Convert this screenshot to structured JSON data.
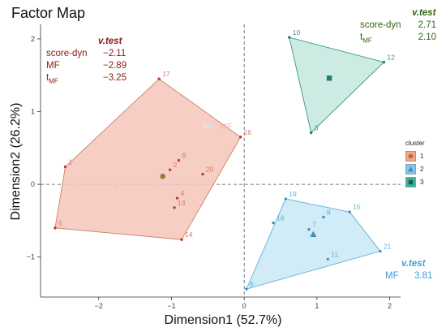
{
  "chart_data": {
    "type": "scatter",
    "title": "Factor Map",
    "xlabel": "Dimension1 (52.7%)",
    "ylabel": "Dimension2 (26.2%)",
    "xlim": [
      -2.8,
      2.15
    ],
    "ylim": [
      -1.55,
      2.2
    ],
    "xticks": [
      -2,
      -1,
      0,
      1,
      2
    ],
    "xtick_labels": [
      "−2",
      "−1",
      "0",
      "1",
      "2"
    ],
    "yticks": [
      -1,
      0,
      1,
      2
    ],
    "yticks_labels_unused": "",
    "ytick_labels": [
      "−1",
      "0",
      "1",
      "2"
    ],
    "reference_lines": {
      "x": 0,
      "y": 0,
      "style": "dashed"
    },
    "legend": {
      "title": "cluster",
      "placement": "right",
      "entries": [
        {
          "label": "1",
          "color": "#f4a582",
          "shape": "circle"
        },
        {
          "label": "2",
          "color": "#7fc8ea",
          "shape": "triangle"
        },
        {
          "label": "3",
          "color": "#35b39a",
          "shape": "square"
        }
      ]
    },
    "clusters": [
      {
        "name": "1",
        "fill": "#f6c6b8",
        "stroke": "#c9826f",
        "point_color": "#c0392b",
        "label_color": "#d9776a",
        "hull": [
          "17",
          "16",
          "14",
          "5",
          "1"
        ],
        "centroid": {
          "x": -1.12,
          "y": 0.11
        },
        "points": [
          {
            "label": "1",
            "x": -2.46,
            "y": 0.24
          },
          {
            "label": "2",
            "x": -1.02,
            "y": 0.2
          },
          {
            "label": "4",
            "x": -0.92,
            "y": -0.19
          },
          {
            "label": "5",
            "x": -2.6,
            "y": -0.6
          },
          {
            "label": "9",
            "x": -0.9,
            "y": 0.33
          },
          {
            "label": "13",
            "x": -0.96,
            "y": -0.32
          },
          {
            "label": "14",
            "x": -0.86,
            "y": -0.76
          },
          {
            "label": "16",
            "x": -0.05,
            "y": 0.65
          },
          {
            "label": "17",
            "x": -1.17,
            "y": 1.45
          },
          {
            "label": "20",
            "x": -0.57,
            "y": 0.14
          }
        ]
      },
      {
        "name": "2",
        "fill": "#c9e7f6",
        "stroke": "#5fb3d9",
        "point_color": "#3d8fc0",
        "label_color": "#5fb3d9",
        "hull": [
          "19",
          "15",
          "21",
          "6"
        ],
        "centroid": {
          "x": 0.95,
          "y": -0.69
        },
        "points": [
          {
            "label": "6",
            "x": 0.03,
            "y": -1.44
          },
          {
            "label": "7",
            "x": 0.89,
            "y": -0.62
          },
          {
            "label": "8",
            "x": 1.09,
            "y": -0.45
          },
          {
            "label": "11",
            "x": 1.15,
            "y": -1.03
          },
          {
            "label": "15",
            "x": 1.45,
            "y": -0.38
          },
          {
            "label": "18",
            "x": 0.4,
            "y": -0.53
          },
          {
            "label": "19",
            "x": 0.57,
            "y": -0.2
          },
          {
            "label": "21",
            "x": 1.87,
            "y": -0.92
          }
        ]
      },
      {
        "name": "3",
        "fill": "#c4e8dd",
        "stroke": "#2f9b86",
        "point_color": "#1f7e6f",
        "label_color": "#4a8f85",
        "hull": [
          "10",
          "12",
          "3"
        ],
        "centroid": {
          "x": 1.17,
          "y": 1.46
        },
        "points": [
          {
            "label": "3",
            "x": 0.92,
            "y": 0.71
          },
          {
            "label": "10",
            "x": 0.62,
            "y": 2.02
          },
          {
            "label": "12",
            "x": 1.92,
            "y": 1.68
          }
        ]
      }
    ],
    "supplementary_labels": [
      {
        "label": "MF",
        "x": -0.25,
        "y": 0.76,
        "color": "#f1b7a8"
      },
      {
        "label": "MF",
        "x": -0.49,
        "y": 0.77,
        "color": "#dbe7f0"
      }
    ],
    "annotations": [
      {
        "cluster": "1",
        "color": "#8b1a0e",
        "header": "v.test",
        "rows": [
          {
            "key": "score-dyn",
            "value": "−2.11"
          },
          {
            "key": "MF",
            "value": "−2.89"
          },
          {
            "key": "t",
            "key_sub": "MF",
            "value": "−3.25"
          }
        ]
      },
      {
        "cluster": "3",
        "color": "#2d6a10",
        "header": "v.test",
        "rows": [
          {
            "key": "score-dyn",
            "value": "2.71"
          },
          {
            "key": "t",
            "key_sub": "MF",
            "value": "2.10"
          }
        ]
      },
      {
        "cluster": "2",
        "color": "#3ea0d0",
        "header": "v.test",
        "rows": [
          {
            "key": "MF",
            "value": "3.81"
          }
        ]
      }
    ]
  }
}
